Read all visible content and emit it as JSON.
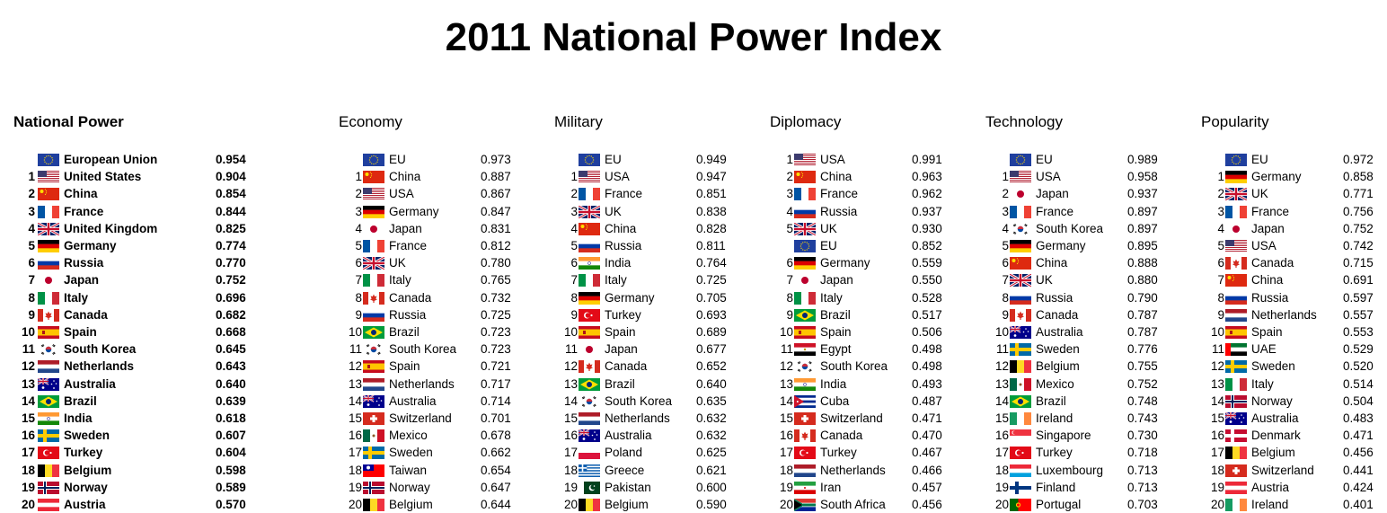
{
  "title": "2011 National Power Index",
  "colors": {
    "text": "#000000",
    "background": "#ffffff"
  },
  "panels": [
    {
      "heading": "National Power",
      "bold": true,
      "rows": [
        {
          "rank": "",
          "flag": "eu",
          "name": "European Union",
          "score": "0.954"
        },
        {
          "rank": "1",
          "flag": "us",
          "name": "United States",
          "score": "0.904"
        },
        {
          "rank": "2",
          "flag": "cn",
          "name": "China",
          "score": "0.854"
        },
        {
          "rank": "3",
          "flag": "fr",
          "name": "France",
          "score": "0.844"
        },
        {
          "rank": "4",
          "flag": "gb",
          "name": "United Kingdom",
          "score": "0.825"
        },
        {
          "rank": "5",
          "flag": "de",
          "name": "Germany",
          "score": "0.774"
        },
        {
          "rank": "6",
          "flag": "ru",
          "name": "Russia",
          "score": "0.770"
        },
        {
          "rank": "7",
          "flag": "jp",
          "name": "Japan",
          "score": "0.752"
        },
        {
          "rank": "8",
          "flag": "it",
          "name": "Italy",
          "score": "0.696"
        },
        {
          "rank": "9",
          "flag": "ca",
          "name": "Canada",
          "score": "0.682"
        },
        {
          "rank": "10",
          "flag": "es",
          "name": "Spain",
          "score": "0.668"
        },
        {
          "rank": "11",
          "flag": "kr",
          "name": "South Korea",
          "score": "0.645"
        },
        {
          "rank": "12",
          "flag": "nl",
          "name": "Netherlands",
          "score": "0.643"
        },
        {
          "rank": "13",
          "flag": "au",
          "name": "Australia",
          "score": "0.640"
        },
        {
          "rank": "14",
          "flag": "br",
          "name": "Brazil",
          "score": "0.639"
        },
        {
          "rank": "15",
          "flag": "in",
          "name": "India",
          "score": "0.618"
        },
        {
          "rank": "16",
          "flag": "se",
          "name": "Sweden",
          "score": "0.607"
        },
        {
          "rank": "17",
          "flag": "tr",
          "name": "Turkey",
          "score": "0.604"
        },
        {
          "rank": "18",
          "flag": "be",
          "name": "Belgium",
          "score": "0.598"
        },
        {
          "rank": "19",
          "flag": "no",
          "name": "Norway",
          "score": "0.589"
        },
        {
          "rank": "20",
          "flag": "at",
          "name": "Austria",
          "score": "0.570"
        }
      ]
    },
    {
      "heading": "Economy",
      "bold": false,
      "rows": [
        {
          "rank": "",
          "flag": "eu",
          "name": "EU",
          "score": "0.973"
        },
        {
          "rank": "1",
          "flag": "cn",
          "name": "China",
          "score": "0.887"
        },
        {
          "rank": "2",
          "flag": "us",
          "name": "USA",
          "score": "0.867"
        },
        {
          "rank": "3",
          "flag": "de",
          "name": "Germany",
          "score": "0.847"
        },
        {
          "rank": "4",
          "flag": "jp",
          "name": "Japan",
          "score": "0.831"
        },
        {
          "rank": "5",
          "flag": "fr",
          "name": "France",
          "score": "0.812"
        },
        {
          "rank": "6",
          "flag": "gb",
          "name": "UK",
          "score": "0.780"
        },
        {
          "rank": "7",
          "flag": "it",
          "name": "Italy",
          "score": "0.765"
        },
        {
          "rank": "8",
          "flag": "ca",
          "name": "Canada",
          "score": "0.732"
        },
        {
          "rank": "9",
          "flag": "ru",
          "name": "Russia",
          "score": "0.725"
        },
        {
          "rank": "10",
          "flag": "br",
          "name": "Brazil",
          "score": "0.723"
        },
        {
          "rank": "11",
          "flag": "kr",
          "name": "South Korea",
          "score": "0.723"
        },
        {
          "rank": "12",
          "flag": "es",
          "name": "Spain",
          "score": "0.721"
        },
        {
          "rank": "13",
          "flag": "nl",
          "name": "Netherlands",
          "score": "0.717"
        },
        {
          "rank": "14",
          "flag": "au",
          "name": "Australia",
          "score": "0.714"
        },
        {
          "rank": "15",
          "flag": "ch",
          "name": "Switzerland",
          "score": "0.701"
        },
        {
          "rank": "16",
          "flag": "mx",
          "name": "Mexico",
          "score": "0.678"
        },
        {
          "rank": "17",
          "flag": "se",
          "name": "Sweden",
          "score": "0.662"
        },
        {
          "rank": "18",
          "flag": "tw",
          "name": "Taiwan",
          "score": "0.654"
        },
        {
          "rank": "19",
          "flag": "no",
          "name": "Norway",
          "score": "0.647"
        },
        {
          "rank": "20",
          "flag": "be",
          "name": "Belgium",
          "score": "0.644"
        }
      ]
    },
    {
      "heading": "Military",
      "bold": false,
      "rows": [
        {
          "rank": "",
          "flag": "eu",
          "name": "EU",
          "score": "0.949"
        },
        {
          "rank": "1",
          "flag": "us",
          "name": "USA",
          "score": "0.947"
        },
        {
          "rank": "2",
          "flag": "fr",
          "name": "France",
          "score": "0.851"
        },
        {
          "rank": "3",
          "flag": "gb",
          "name": "UK",
          "score": "0.838"
        },
        {
          "rank": "4",
          "flag": "cn",
          "name": "China",
          "score": "0.828"
        },
        {
          "rank": "5",
          "flag": "ru",
          "name": "Russia",
          "score": "0.811"
        },
        {
          "rank": "6",
          "flag": "in",
          "name": "India",
          "score": "0.764"
        },
        {
          "rank": "7",
          "flag": "it",
          "name": "Italy",
          "score": "0.725"
        },
        {
          "rank": "8",
          "flag": "de",
          "name": "Germany",
          "score": "0.705"
        },
        {
          "rank": "9",
          "flag": "tr",
          "name": "Turkey",
          "score": "0.693"
        },
        {
          "rank": "10",
          "flag": "es",
          "name": "Spain",
          "score": "0.689"
        },
        {
          "rank": "11",
          "flag": "jp",
          "name": "Japan",
          "score": "0.677"
        },
        {
          "rank": "12",
          "flag": "ca",
          "name": "Canada",
          "score": "0.652"
        },
        {
          "rank": "13",
          "flag": "br",
          "name": "Brazil",
          "score": "0.640"
        },
        {
          "rank": "14",
          "flag": "kr",
          "name": "South Korea",
          "score": "0.635"
        },
        {
          "rank": "15",
          "flag": "nl",
          "name": "Netherlands",
          "score": "0.632"
        },
        {
          "rank": "16",
          "flag": "au",
          "name": "Australia",
          "score": "0.632"
        },
        {
          "rank": "17",
          "flag": "pl",
          "name": "Poland",
          "score": "0.625"
        },
        {
          "rank": "18",
          "flag": "gr",
          "name": "Greece",
          "score": "0.621"
        },
        {
          "rank": "19",
          "flag": "pk",
          "name": "Pakistan",
          "score": "0.600"
        },
        {
          "rank": "20",
          "flag": "be",
          "name": "Belgium",
          "score": "0.590"
        }
      ]
    },
    {
      "heading": "Diplomacy",
      "bold": false,
      "rows": [
        {
          "rank": "1",
          "flag": "us",
          "name": "USA",
          "score": "0.991"
        },
        {
          "rank": "2",
          "flag": "cn",
          "name": "China",
          "score": "0.963"
        },
        {
          "rank": "3",
          "flag": "fr",
          "name": "France",
          "score": "0.962"
        },
        {
          "rank": "4",
          "flag": "ru",
          "name": "Russia",
          "score": "0.937"
        },
        {
          "rank": "5",
          "flag": "gb",
          "name": "UK",
          "score": "0.930"
        },
        {
          "rank": "",
          "flag": "eu",
          "name": "EU",
          "score": "0.852"
        },
        {
          "rank": "6",
          "flag": "de",
          "name": "Germany",
          "score": "0.559"
        },
        {
          "rank": "7",
          "flag": "jp",
          "name": "Japan",
          "score": "0.550"
        },
        {
          "rank": "8",
          "flag": "it",
          "name": "Italy",
          "score": "0.528"
        },
        {
          "rank": "9",
          "flag": "br",
          "name": "Brazil",
          "score": "0.517"
        },
        {
          "rank": "10",
          "flag": "es",
          "name": "Spain",
          "score": "0.506"
        },
        {
          "rank": "11",
          "flag": "eg",
          "name": "Egypt",
          "score": "0.498"
        },
        {
          "rank": "12",
          "flag": "kr",
          "name": "South Korea",
          "score": "0.498"
        },
        {
          "rank": "13",
          "flag": "in",
          "name": "India",
          "score": "0.493"
        },
        {
          "rank": "14",
          "flag": "cu",
          "name": "Cuba",
          "score": "0.487"
        },
        {
          "rank": "15",
          "flag": "ch",
          "name": "Switzerland",
          "score": "0.471"
        },
        {
          "rank": "16",
          "flag": "ca",
          "name": "Canada",
          "score": "0.470"
        },
        {
          "rank": "17",
          "flag": "tr",
          "name": "Turkey",
          "score": "0.467"
        },
        {
          "rank": "18",
          "flag": "nl",
          "name": "Netherlands",
          "score": "0.466"
        },
        {
          "rank": "19",
          "flag": "ir",
          "name": "Iran",
          "score": "0.457"
        },
        {
          "rank": "20",
          "flag": "za",
          "name": "South Africa",
          "score": "0.456"
        }
      ]
    },
    {
      "heading": "Technology",
      "bold": false,
      "rows": [
        {
          "rank": "",
          "flag": "eu",
          "name": "EU",
          "score": "0.989"
        },
        {
          "rank": "1",
          "flag": "us",
          "name": "USA",
          "score": "0.958"
        },
        {
          "rank": "2",
          "flag": "jp",
          "name": "Japan",
          "score": "0.937"
        },
        {
          "rank": "3",
          "flag": "fr",
          "name": "France",
          "score": "0.897"
        },
        {
          "rank": "4",
          "flag": "kr",
          "name": "South Korea",
          "score": "0.897"
        },
        {
          "rank": "5",
          "flag": "de",
          "name": "Germany",
          "score": "0.895"
        },
        {
          "rank": "6",
          "flag": "cn",
          "name": "China",
          "score": "0.888"
        },
        {
          "rank": "7",
          "flag": "gb",
          "name": "UK",
          "score": "0.880"
        },
        {
          "rank": "8",
          "flag": "ru",
          "name": "Russia",
          "score": "0.790"
        },
        {
          "rank": "9",
          "flag": "ca",
          "name": "Canada",
          "score": "0.787"
        },
        {
          "rank": "10",
          "flag": "au",
          "name": "Australia",
          "score": "0.787"
        },
        {
          "rank": "11",
          "flag": "se",
          "name": "Sweden",
          "score": "0.776"
        },
        {
          "rank": "12",
          "flag": "be",
          "name": "Belgium",
          "score": "0.755"
        },
        {
          "rank": "13",
          "flag": "mx",
          "name": "Mexico",
          "score": "0.752"
        },
        {
          "rank": "14",
          "flag": "br",
          "name": "Brazil",
          "score": "0.748"
        },
        {
          "rank": "15",
          "flag": "ie",
          "name": "Ireland",
          "score": "0.743"
        },
        {
          "rank": "16",
          "flag": "sg",
          "name": "Singapore",
          "score": "0.730"
        },
        {
          "rank": "17",
          "flag": "tr",
          "name": "Turkey",
          "score": "0.718"
        },
        {
          "rank": "18",
          "flag": "lu",
          "name": "Luxembourg",
          "score": "0.713"
        },
        {
          "rank": "19",
          "flag": "fi",
          "name": "Finland",
          "score": "0.713"
        },
        {
          "rank": "20",
          "flag": "pt",
          "name": "Portugal",
          "score": "0.703"
        }
      ]
    },
    {
      "heading": "Popularity",
      "bold": false,
      "rows": [
        {
          "rank": "",
          "flag": "eu",
          "name": "EU",
          "score": "0.972"
        },
        {
          "rank": "1",
          "flag": "de",
          "name": "Germany",
          "score": "0.858"
        },
        {
          "rank": "2",
          "flag": "gb",
          "name": "UK",
          "score": "0.771"
        },
        {
          "rank": "3",
          "flag": "fr",
          "name": "France",
          "score": "0.756"
        },
        {
          "rank": "4",
          "flag": "jp",
          "name": "Japan",
          "score": "0.752"
        },
        {
          "rank": "5",
          "flag": "us",
          "name": "USA",
          "score": "0.742"
        },
        {
          "rank": "6",
          "flag": "ca",
          "name": "Canada",
          "score": "0.715"
        },
        {
          "rank": "7",
          "flag": "cn",
          "name": "China",
          "score": "0.691"
        },
        {
          "rank": "8",
          "flag": "ru",
          "name": "Russia",
          "score": "0.597"
        },
        {
          "rank": "9",
          "flag": "nl",
          "name": "Netherlands",
          "score": "0.557"
        },
        {
          "rank": "10",
          "flag": "es",
          "name": "Spain",
          "score": "0.553"
        },
        {
          "rank": "11",
          "flag": "ae",
          "name": "UAE",
          "score": "0.529"
        },
        {
          "rank": "12",
          "flag": "se",
          "name": "Sweden",
          "score": "0.520"
        },
        {
          "rank": "13",
          "flag": "it",
          "name": "Italy",
          "score": "0.514"
        },
        {
          "rank": "14",
          "flag": "no",
          "name": "Norway",
          "score": "0.504"
        },
        {
          "rank": "15",
          "flag": "au",
          "name": "Australia",
          "score": "0.483"
        },
        {
          "rank": "16",
          "flag": "dk",
          "name": "Denmark",
          "score": "0.471"
        },
        {
          "rank": "17",
          "flag": "be",
          "name": "Belgium",
          "score": "0.456"
        },
        {
          "rank": "18",
          "flag": "ch",
          "name": "Switzerland",
          "score": "0.441"
        },
        {
          "rank": "19",
          "flag": "at",
          "name": "Austria",
          "score": "0.424"
        },
        {
          "rank": "20",
          "flag": "ie",
          "name": "Ireland",
          "score": "0.401"
        }
      ]
    }
  ]
}
